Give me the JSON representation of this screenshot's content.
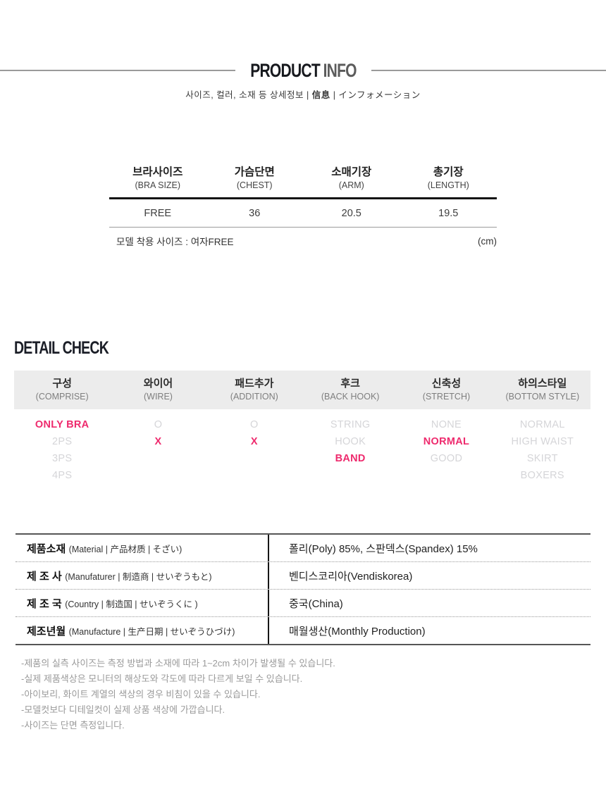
{
  "header": {
    "title_primary": "PRODUCT",
    "title_secondary": "INFO",
    "subtitle_left": "사이즈, 컬러, 소재 등 상세정보 | ",
    "subtitle_bold": "信息",
    "subtitle_right": " | インフォメーション"
  },
  "size_table": {
    "columns": [
      {
        "ko": "브라사이즈",
        "en": "(BRA SIZE)"
      },
      {
        "ko": "가슴단면",
        "en": "(CHEST)"
      },
      {
        "ko": "소매기장",
        "en": "(ARM)"
      },
      {
        "ko": "총기장",
        "en": "(LENGTH)"
      }
    ],
    "values": [
      "FREE",
      "36",
      "20.5",
      "19.5"
    ],
    "model_note": "모델 착용 사이즈 : 여자FREE",
    "unit": "(cm)"
  },
  "detail_check": {
    "title": "DETAIL CHECK",
    "columns": [
      {
        "ko": "구성",
        "en": "(COMPRISE)",
        "options": [
          {
            "label": "ONLY BRA",
            "active": true
          },
          {
            "label": "2PS",
            "active": false
          },
          {
            "label": "3PS",
            "active": false
          },
          {
            "label": "4PS",
            "active": false
          }
        ]
      },
      {
        "ko": "와이어",
        "en": "(WIRE)",
        "options": [
          {
            "label": "O",
            "active": false
          },
          {
            "label": "X",
            "active": true
          }
        ]
      },
      {
        "ko": "패드추가",
        "en": "(ADDITION)",
        "options": [
          {
            "label": "O",
            "active": false
          },
          {
            "label": "X",
            "active": true
          }
        ]
      },
      {
        "ko": "후크",
        "en": "(BACK HOOK)",
        "options": [
          {
            "label": "STRING",
            "active": false
          },
          {
            "label": "HOOK",
            "active": false
          },
          {
            "label": "BAND",
            "active": true
          }
        ]
      },
      {
        "ko": "신축성",
        "en": "(STRETCH)",
        "options": [
          {
            "label": "NONE",
            "active": false
          },
          {
            "label": "NORMAL",
            "active": true
          },
          {
            "label": "GOOD",
            "active": false
          }
        ]
      },
      {
        "ko": "하의스타일",
        "en": "(BOTTOM STYLE)",
        "options": [
          {
            "label": "NORMAL",
            "active": false
          },
          {
            "label": "HIGH WAIST",
            "active": false
          },
          {
            "label": "SKIRT",
            "active": false
          },
          {
            "label": "BOXERS",
            "active": false
          }
        ]
      }
    ]
  },
  "info_table": {
    "rows": [
      {
        "label_ko": "제품소재",
        "label_sub": "(Material | 产品材质  | そざい)",
        "value": "폴리(Poly) 85%, 스판덱스(Spandex) 15%"
      },
      {
        "label_ko": "제 조 사",
        "label_sub": "(Manufaturer | 制造商 | せいぞうもと)",
        "value": "벤디스코리아(Vendiskorea)"
      },
      {
        "label_ko": "제 조 국",
        "label_sub": "(Country | 制造国 | せいぞうくに )",
        "value": "중국(China)"
      },
      {
        "label_ko": "제조년월",
        "label_sub": "(Manufacture | 生产日期 | せいぞうひづけ)",
        "value": "매월생산(Monthly Production)"
      }
    ]
  },
  "notes": [
    "-제품의 실측 사이즈는 측정 방법과 소재에 따라 1~2cm 차이가 발생될 수 있습니다.",
    "-실제 제품색상은 모니터의 해상도와 각도에 따라 다르게 보일 수 있습니다.",
    "-아이보리, 화이트 계열의 색상의 경우 비침이 있을 수 있습니다.",
    "-모델컷보다 디테일컷이 실제 상품 색상에 가깝습니다.",
    "-사이즈는 단면 측정입니다."
  ],
  "colors": {
    "accent_pink": "#ee2a6d",
    "inactive_gray": "#d5d5d8",
    "band_gray": "#ececec",
    "headline_dark": "#17191e"
  }
}
